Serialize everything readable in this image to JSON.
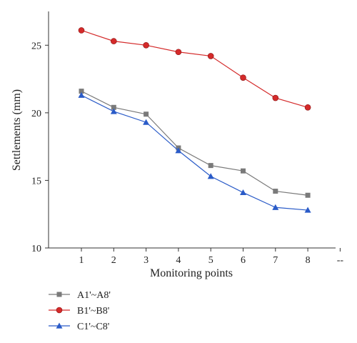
{
  "chart_data": {
    "type": "line",
    "title": "",
    "xlabel": "Monitoring points",
    "ylabel": "Settlements (mm)",
    "x": [
      1,
      2,
      3,
      4,
      5,
      6,
      7,
      8
    ],
    "x_tick_labels": [
      "1",
      "2",
      "3",
      "4",
      "5",
      "6",
      "7",
      "8",
      "--"
    ],
    "ylim": [
      10,
      27.5
    ],
    "y_ticks": [
      10,
      15,
      20,
      25
    ],
    "grid": false,
    "legend_position": "bottom-left, outside below plot",
    "series": [
      {
        "name": "A1'~A8'",
        "color": "#7a7a7a",
        "marker": "square",
        "values": [
          21.6,
          20.4,
          19.9,
          17.4,
          16.1,
          15.7,
          14.2,
          13.9
        ]
      },
      {
        "name": "B1'~B8'",
        "color": "#d42a2a",
        "marker": "circle",
        "values": [
          26.1,
          25.3,
          25.0,
          24.5,
          24.2,
          22.6,
          21.1,
          20.4
        ]
      },
      {
        "name": "C1'~C8'",
        "color": "#2a5bc8",
        "marker": "triangle",
        "values": [
          21.3,
          20.1,
          19.3,
          17.2,
          15.3,
          14.1,
          13.0,
          12.8
        ]
      }
    ]
  }
}
